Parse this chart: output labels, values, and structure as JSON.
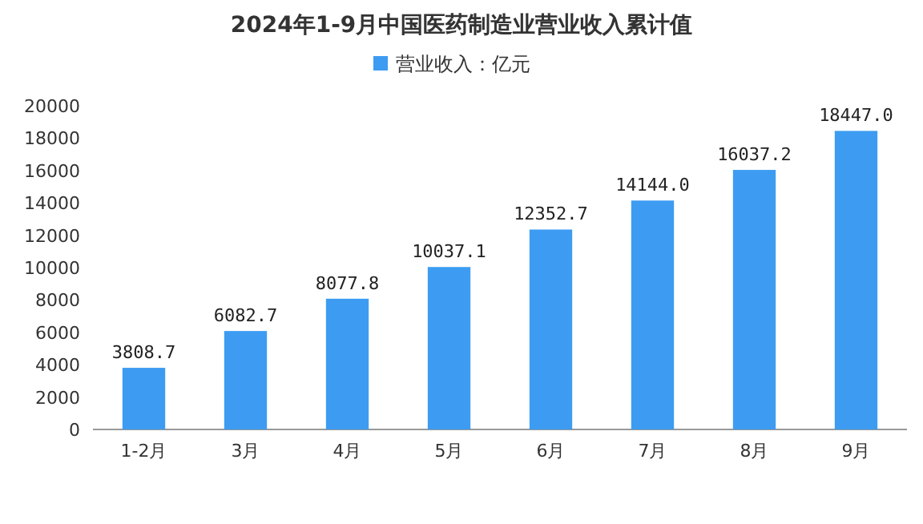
{
  "chart_data": {
    "type": "bar",
    "title": "2024年1-9月中国医药制造业营业收入累计值",
    "categories": [
      "1-2月",
      "3月",
      "4月",
      "5月",
      "6月",
      "7月",
      "8月",
      "9月"
    ],
    "series": [
      {
        "name": "营业收入：亿元",
        "color": "#3d9cf2",
        "values": [
          3808.7,
          6082.7,
          8077.8,
          10037.1,
          12352.7,
          14144.0,
          16037.2,
          18447.0
        ],
        "value_labels": [
          "3808.7",
          "6082.7",
          "8077.8",
          "10037.1",
          "12352.7",
          "14144.0",
          "16037.2",
          "18447.0"
        ]
      }
    ],
    "ylim": [
      0,
      20000
    ],
    "yticks": [
      0,
      2000,
      4000,
      6000,
      8000,
      10000,
      12000,
      14000,
      16000,
      18000,
      20000
    ],
    "grid": false,
    "legend": "top"
  }
}
